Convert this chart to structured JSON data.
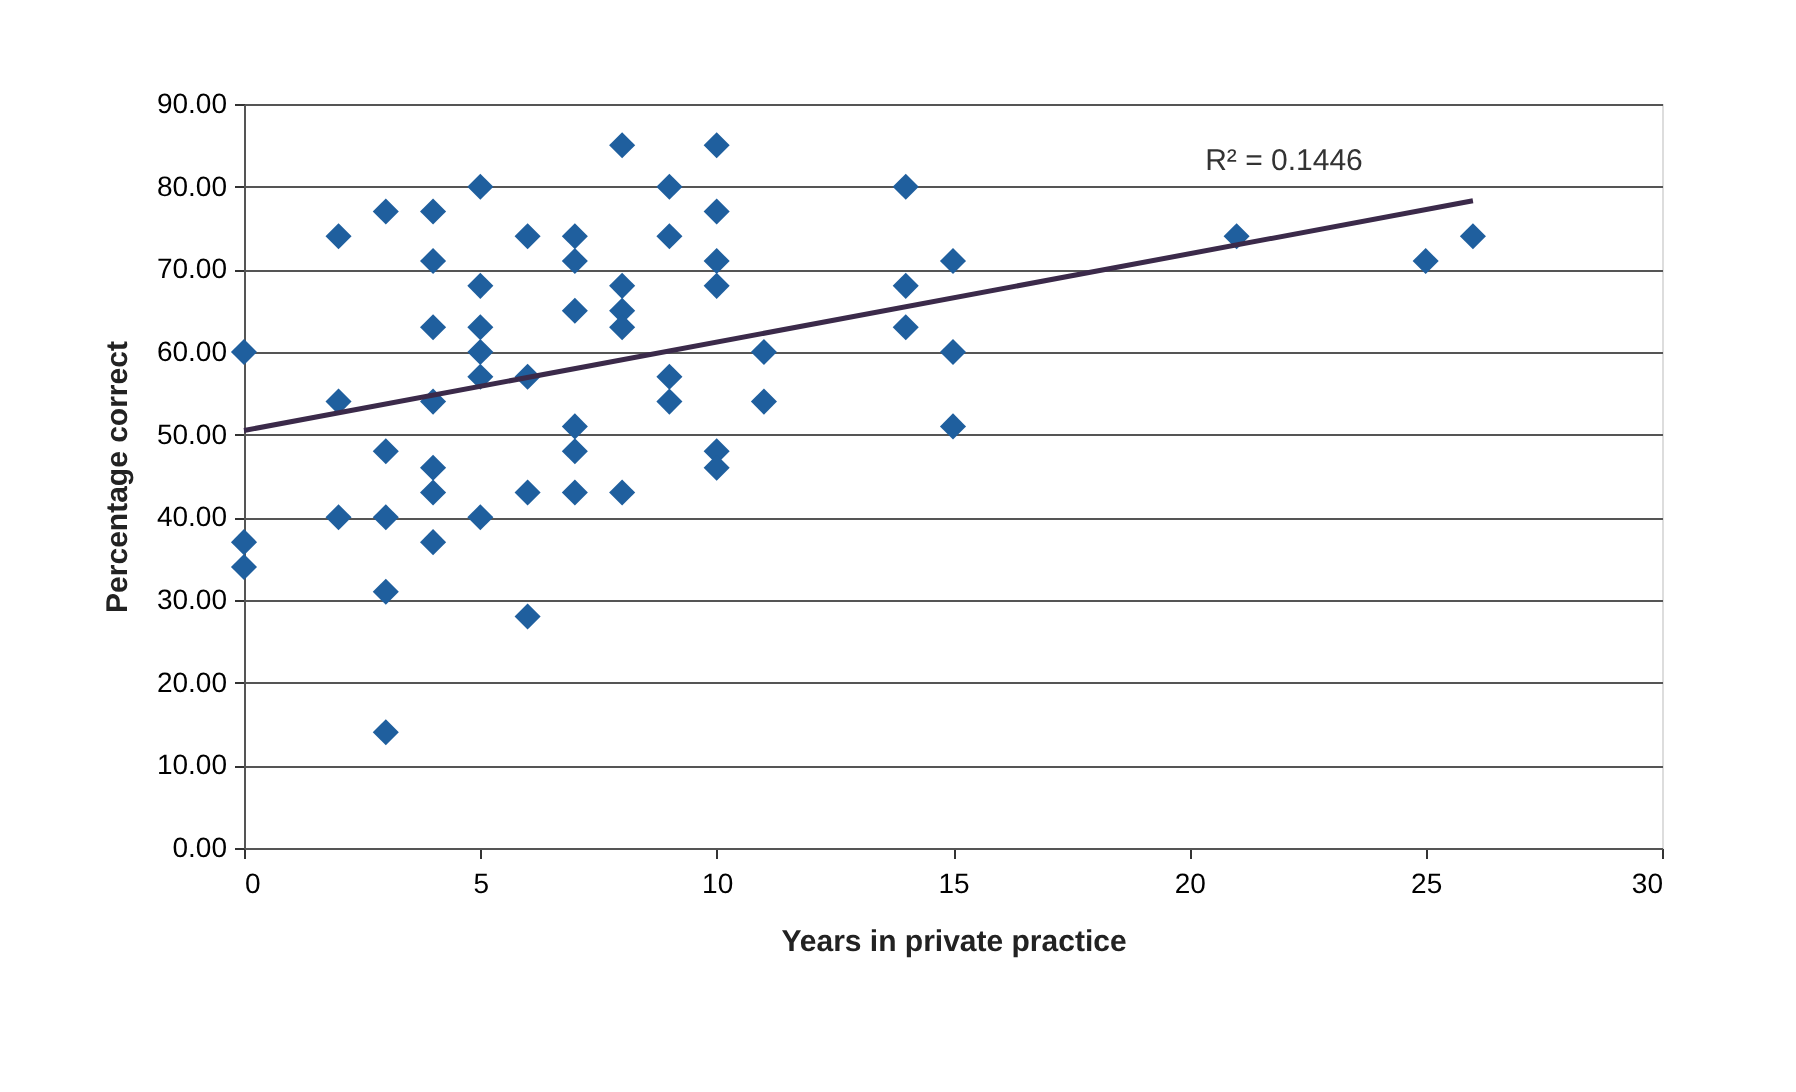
{
  "chart_data": {
    "type": "scatter",
    "xlabel": "Years in private practice",
    "ylabel": "Percentage correct",
    "annotations": [
      "R² = 0.1446"
    ],
    "series": [
      {
        "color": "#1f5f9e",
        "marker": "diamond",
        "x": [
          0,
          0,
          0,
          2,
          2,
          2,
          3,
          3,
          3,
          3,
          3,
          4,
          4,
          4,
          4,
          4,
          4,
          4,
          5,
          5,
          5,
          5,
          5,
          5,
          6,
          6,
          6,
          6,
          7,
          7,
          7,
          7,
          7,
          7,
          8,
          8,
          8,
          8,
          8,
          9,
          9,
          9,
          9,
          10,
          10,
          10,
          10,
          10,
          10,
          11,
          11,
          14,
          14,
          14,
          15,
          15,
          15,
          21,
          25,
          26
        ],
        "values": [
          60,
          37,
          34,
          74,
          54,
          40,
          77,
          48,
          40,
          31,
          14,
          77,
          71,
          63,
          54,
          46,
          43,
          37,
          80,
          68,
          63,
          60,
          57,
          40,
          74,
          57,
          43,
          28,
          74,
          71,
          65,
          51,
          48,
          43,
          85,
          68,
          65,
          63,
          43,
          80,
          74,
          57,
          54,
          85,
          77,
          71,
          68,
          48,
          46,
          60,
          54,
          80,
          68,
          63,
          71,
          60,
          51,
          74,
          71,
          74
        ]
      },
      {
        "type": "line",
        "color": "#3b2a4a",
        "line_style": "solid",
        "x": [
          0,
          26
        ],
        "values": [
          50.5,
          78.3
        ]
      }
    ],
    "xlim": [
      0,
      30
    ],
    "xticks": [
      0,
      5,
      10,
      15,
      20,
      25,
      30
    ],
    "ylim": [
      0,
      90
    ],
    "yticks": [
      {
        "value": 0,
        "label": "0.00"
      },
      {
        "value": 10,
        "label": "10.00"
      },
      {
        "value": 20,
        "label": "20.00"
      },
      {
        "value": 30,
        "label": "30.00"
      },
      {
        "value": 40,
        "label": "40.00"
      },
      {
        "value": 50,
        "label": "50.00"
      },
      {
        "value": 60,
        "label": "60.00"
      },
      {
        "value": 70,
        "label": "70.00"
      },
      {
        "value": 80,
        "label": "80.00"
      },
      {
        "value": 90,
        "label": "90.00"
      }
    ],
    "grid": "y"
  }
}
